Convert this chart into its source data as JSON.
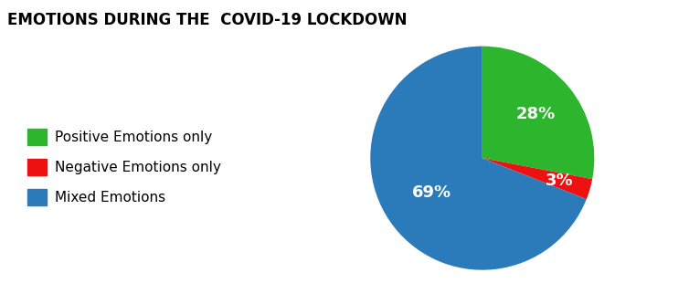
{
  "title": "EMOTIONS DURING THE  COVID-19 LOCKDOWN",
  "slices": [
    28,
    3,
    69
  ],
  "labels": [
    "Positive Emotions only",
    "Negative Emotions only",
    "Mixed Emotions"
  ],
  "colors": [
    "#2db52d",
    "#ee1111",
    "#2b7bba"
  ],
  "autopct_labels": [
    "28%",
    "3%",
    "69%"
  ],
  "startangle": 90,
  "title_fontsize": 12,
  "pct_fontsize": 13,
  "legend_fontsize": 11,
  "bg_color": "#ffffff"
}
